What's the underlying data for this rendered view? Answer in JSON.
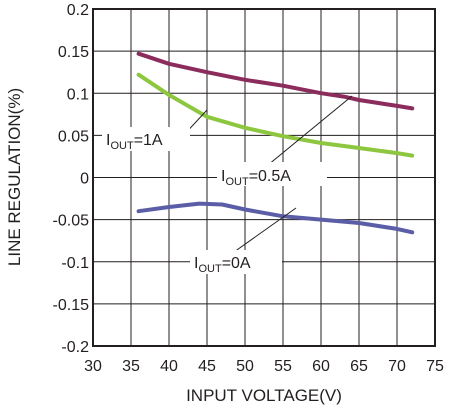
{
  "chart_data": {
    "type": "line",
    "title": "",
    "xlabel": "INPUT VOLTAGE(V)",
    "ylabel": "LINE REGULATION(%)",
    "xlim": [
      30,
      75
    ],
    "ylim": [
      -0.2,
      0.2
    ],
    "grid": true,
    "x_ticks": [
      "30",
      "35",
      "40",
      "45",
      "50",
      "55",
      "60",
      "65",
      "70",
      "75"
    ],
    "y_ticks": [
      "0.2",
      "0.15",
      "0.1",
      "0.05",
      "0",
      "-0.05",
      "-0.1",
      "-0.15",
      "-0.2"
    ],
    "series": [
      {
        "name": "IOUT=0.5A",
        "color": "#8b2c5c",
        "x": [
          36,
          40,
          45,
          50,
          55,
          60,
          63,
          65,
          70,
          72
        ],
        "y": [
          0.147,
          0.135,
          0.125,
          0.116,
          0.109,
          0.1,
          0.096,
          0.092,
          0.085,
          0.082
        ]
      },
      {
        "name": "IOUT=1A",
        "color": "#8dc63f",
        "x": [
          36,
          40,
          45,
          50,
          55,
          60,
          65,
          70,
          72
        ],
        "y": [
          0.122,
          0.098,
          0.072,
          0.059,
          0.049,
          0.041,
          0.035,
          0.029,
          0.026
        ]
      },
      {
        "name": "IOUT=0A",
        "color": "#5b5ea6",
        "x": [
          36,
          40,
          44,
          47,
          50,
          55,
          60,
          65,
          70,
          72
        ],
        "y": [
          -0.04,
          -0.035,
          -0.031,
          -0.032,
          -0.038,
          -0.046,
          -0.05,
          -0.054,
          -0.061,
          -0.065
        ]
      }
    ],
    "annotations": [
      {
        "main": "I",
        "sub": "OUT",
        "rest": "=1A",
        "series": 1
      },
      {
        "main": "I",
        "sub": "OUT",
        "rest": "=0.5A",
        "series": 0
      },
      {
        "main": "I",
        "sub": "OUT",
        "rest": "=0A",
        "series": 2
      }
    ]
  }
}
